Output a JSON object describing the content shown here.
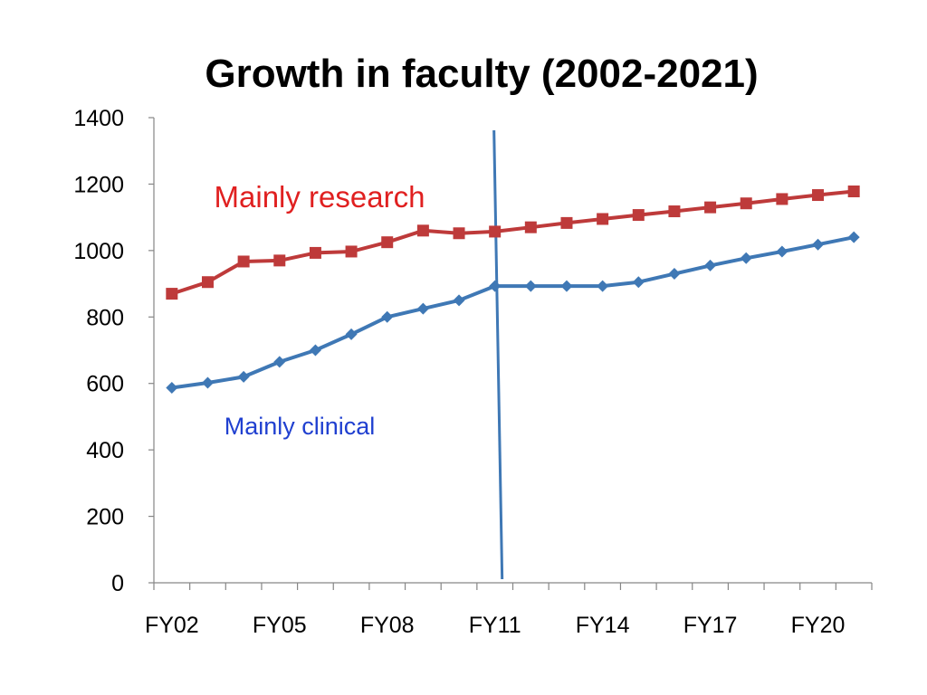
{
  "chart_data": {
    "type": "line",
    "title": "Growth in faculty (2002-2021)",
    "x": [
      "FY02",
      "FY03",
      "FY04",
      "FY05",
      "FY06",
      "FY07",
      "FY08",
      "FY09",
      "FY10",
      "FY11",
      "FY12",
      "FY13",
      "FY14",
      "FY15",
      "FY16",
      "FY17",
      "FY18",
      "FY19",
      "FY20",
      "FY21"
    ],
    "x_tick_labels": [
      "FY02",
      "FY05",
      "FY08",
      "FY11",
      "FY14",
      "FY17",
      "FY20"
    ],
    "y_tick_labels": [
      "0",
      "200",
      "400",
      "600",
      "800",
      "1000",
      "1200",
      "1400"
    ],
    "ylim": [
      0,
      1400
    ],
    "grid": false,
    "legend": "none",
    "series": [
      {
        "name": "Mainly research",
        "color": "#be3a3a",
        "marker": "square",
        "values": [
          870,
          905,
          967,
          970,
          993,
          997,
          1025,
          1060,
          1052,
          1057,
          1070,
          1083,
          1095,
          1107,
          1118,
          1130,
          1142,
          1155,
          1167,
          1178
        ]
      },
      {
        "name": "Mainly clinical",
        "color": "#3f78b5",
        "marker": "diamond",
        "values": [
          587,
          602,
          620,
          665,
          700,
          748,
          800,
          825,
          850,
          893,
          893,
          893,
          893,
          905,
          930,
          955,
          977,
          997,
          1018,
          1040
        ]
      }
    ],
    "annotations": [
      {
        "text": "Mainly research",
        "color": "#e02020"
      },
      {
        "text": "Mainly clinical",
        "color": "#2040d0"
      }
    ],
    "reference_line": {
      "color": "#3f78b5"
    }
  }
}
